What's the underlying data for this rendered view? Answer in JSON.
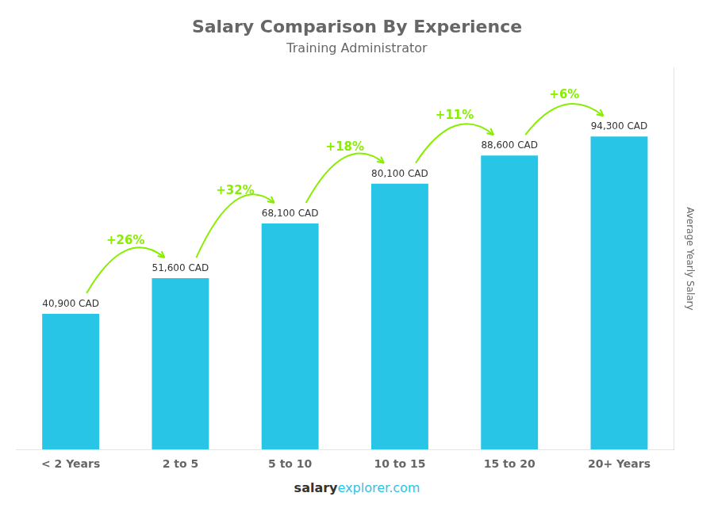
{
  "chart_data": {
    "type": "bar",
    "title": "Salary Comparison By Experience",
    "subtitle": "Training Administrator",
    "categories": [
      "< 2 Years",
      "2 to 5",
      "5 to 10",
      "10 to 15",
      "15 to 20",
      "20+ Years"
    ],
    "values": [
      40900,
      51600,
      68100,
      80100,
      88600,
      94300
    ],
    "value_labels": [
      "40,900 CAD",
      "51,600 CAD",
      "68,100 CAD",
      "80,100 CAD",
      "88,600 CAD",
      "94,300 CAD"
    ],
    "data_labels": true,
    "color": "#29c5e6",
    "y_label": "Average Yearly Salary",
    "ylim": [
      0,
      115000
    ],
    "tick_labels": "x",
    "grid": false,
    "annotations": [
      {
        "text": "+26%",
        "color": "#88ee00"
      },
      {
        "text": "+32%",
        "color": "#88ee00"
      },
      {
        "text": "+18%",
        "color": "#88ee00"
      },
      {
        "text": "+11%",
        "color": "#88ee00"
      },
      {
        "text": "+6%",
        "color": "#88ee00"
      }
    ],
    "footer": [
      {
        "text": "salary"
      },
      {
        "text": "explorer.com",
        "color": "#29c5e6"
      }
    ]
  }
}
